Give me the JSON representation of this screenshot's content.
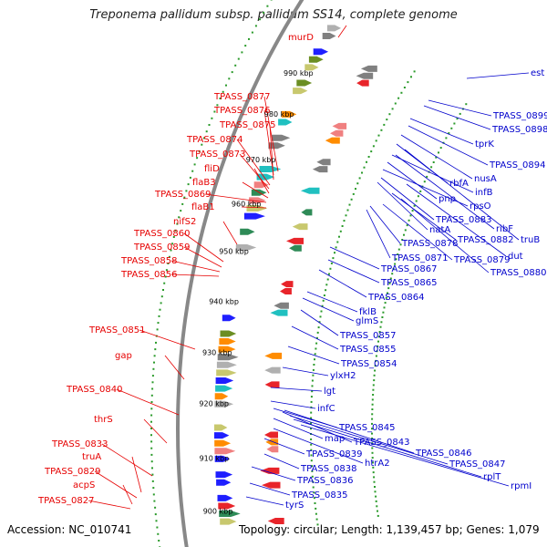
{
  "title": "Treponema pallidum subsp. pallidum SS14, complete genome",
  "footer": {
    "accession": "Accession: NC_010741",
    "summary": "Topology: circular; Length: 1,139,457 bp; Genes: 1,079"
  },
  "colors": {
    "reverse_label": "#e60000",
    "forward_label": "#0000cc",
    "backbone": "#888888"
  },
  "tick_labels": [
    "990 kbp",
    "980 kbp",
    "970 kbp",
    "960 kbp",
    "950 kbp",
    "940 kbp",
    "930 kbp",
    "920 kbp",
    "910 kbp",
    "900 kbp"
  ],
  "reverse_genes": [
    "murD",
    "TPASS_0877",
    "TPASS_0876",
    "TPASS_0875",
    "TPASS_0874",
    "TPASS_0873",
    "fliD",
    "flaB3",
    "TPASS_0869",
    "flaB1",
    "nifS2",
    "TPASS_0860",
    "TPASS_0859",
    "TPASS_0858",
    "TPASS_0856",
    "TPASS_0851",
    "gap",
    "TPASS_0840",
    "thrS",
    "TPASS_0833",
    "truA",
    "TPASS_0829",
    "acpS",
    "TPASS_0827"
  ],
  "forward_genes": [
    "est",
    "TPASS_0899",
    "TPASS_0898",
    "tprK",
    "TPASS_0894",
    "nusA",
    "rbfA",
    "infB",
    "pnp",
    "rpsO",
    "TPASS_0883",
    "natA",
    "ribF",
    "truB",
    "TPASS_0878",
    "TPASS_0882",
    "TPASS_0871",
    "dut",
    "TPASS_0879",
    "TPASS_0867",
    "TPASS_0880",
    "TPASS_0865",
    "TPASS_0864",
    "fklB",
    "glmS",
    "TPASS_0857",
    "TPASS_0855",
    "TPASS_0854",
    "ylxH2",
    "lgt",
    "infC",
    "TPASS_0845",
    "map",
    "TPASS_0843",
    "TPASS_0846",
    "TPASS_0839",
    "TPASS_0847",
    "TPASS_0838",
    "htrA2",
    "rplT",
    "rpmI",
    "TPASS_0836",
    "TPASS_0835",
    "tyrS"
  ]
}
